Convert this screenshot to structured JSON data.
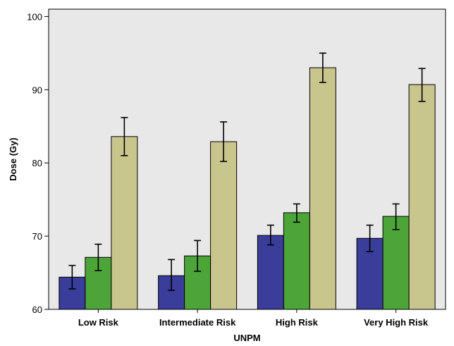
{
  "chart_data": {
    "type": "bar",
    "xlabel": "UNPM",
    "ylabel": "Dose (Gy)",
    "ylim": [
      60,
      101
    ],
    "yticks": [
      60,
      70,
      80,
      90,
      100
    ],
    "categories": [
      "Low Risk",
      "Intermediate Risk",
      "High Risk",
      "Very High Risk"
    ],
    "grid": false,
    "background_color": "#e8e8e8",
    "series": [
      {
        "color": "#3a3d9a",
        "values": [
          64.4,
          64.6,
          70.1,
          69.7
        ],
        "err_low": [
          62.8,
          62.6,
          68.8,
          67.9
        ],
        "err_high": [
          66.0,
          66.8,
          71.5,
          71.5
        ]
      },
      {
        "color": "#4da53a",
        "values": [
          67.1,
          67.3,
          73.2,
          72.7
        ],
        "err_low": [
          65.3,
          65.2,
          71.9,
          70.9
        ],
        "err_high": [
          68.9,
          69.4,
          74.4,
          74.4
        ]
      },
      {
        "color": "#c9c68d",
        "values": [
          83.6,
          82.9,
          93.0,
          90.7
        ],
        "err_low": [
          81.0,
          80.2,
          91.0,
          88.4
        ],
        "err_high": [
          86.2,
          85.6,
          95.0,
          92.9
        ]
      }
    ]
  }
}
